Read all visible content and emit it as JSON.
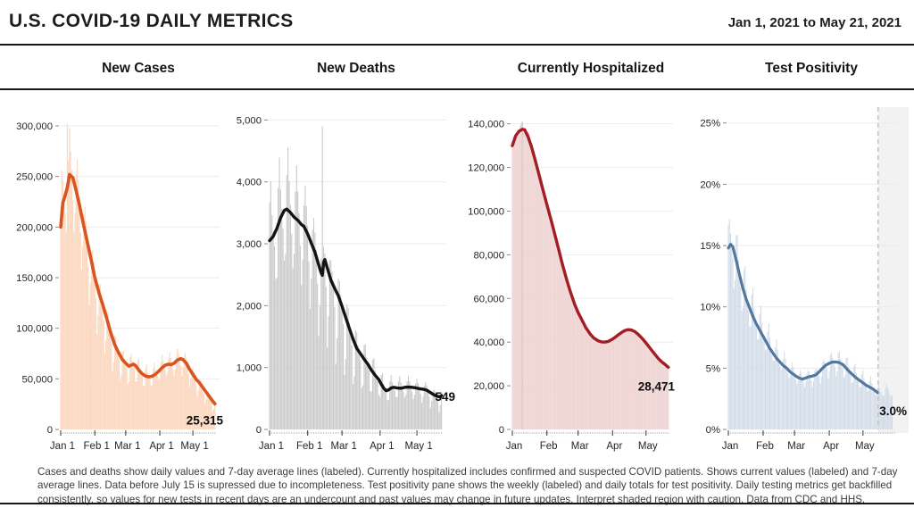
{
  "header": {
    "title": "U.S. COVID-19 DAILY METRICS",
    "date_range": "Jan 1, 2021 to May 21, 2021"
  },
  "footer": {
    "text": "Cases and deaths show daily values and 7-day average lines (labeled). Currently hospitalized includes confirmed and suspected COVID patients. Shows current values (labeled) and 7-day average lines. Data before July 15 is supressed due to incompleteness. Test positivity pane shows the weekly (labeled) and daily totals for test positivity. Daily testing metrics get backfilled consistently, so values for new tests in recent days are an undercount and past values may change in future updates. Interpret shaded region with caution. Data from CDC and HHS."
  },
  "theme": {
    "grid": "#ebebeb",
    "axis_text": "#262626",
    "tick": "#8a8a8a",
    "minor_dot": "#b3b3b3",
    "rule": "#161616",
    "shaded_region": "#f2f2f2",
    "dashed_line": "#c6c6c6",
    "value_label": "#0d0d0d"
  },
  "chart_data": [
    {
      "title": "New Cases",
      "type": "bar+line",
      "x_unit": "days since Jan 1, 2021",
      "x_range": [
        0,
        141
      ],
      "ylim": [
        0,
        315000
      ],
      "yticks": [
        0,
        50000,
        100000,
        150000,
        200000,
        250000,
        300000
      ],
      "ytick_labels": [
        "0",
        "50,000",
        "100,000",
        "150,000",
        "200,000",
        "250,000",
        "300,000"
      ],
      "xticks": [
        {
          "d": 0,
          "label": "Jan 1"
        },
        {
          "d": 31,
          "label": "Feb 1"
        },
        {
          "d": 59,
          "label": "Mar 1"
        },
        {
          "d": 90,
          "label": "Apr 1"
        },
        {
          "d": 120,
          "label": "May 1"
        }
      ],
      "current_value_label": "25,315",
      "current_value": 25315,
      "colors": {
        "line": "#d9541e",
        "bar": "#fbd9c2"
      },
      "avg_line": [
        [
          0,
          200000
        ],
        [
          2,
          224000
        ],
        [
          4,
          231000
        ],
        [
          6,
          239000
        ],
        [
          8,
          252000
        ],
        [
          11,
          249000
        ],
        [
          14,
          236000
        ],
        [
          17,
          222000
        ],
        [
          20,
          206000
        ],
        [
          24,
          186000
        ],
        [
          28,
          166000
        ],
        [
          31,
          150000
        ],
        [
          35,
          134000
        ],
        [
          38,
          124000
        ],
        [
          42,
          109000
        ],
        [
          45,
          97000
        ],
        [
          49,
          84000
        ],
        [
          52,
          77000
        ],
        [
          56,
          69000
        ],
        [
          59,
          65500
        ],
        [
          62,
          62500
        ],
        [
          64,
          63500
        ],
        [
          66,
          64500
        ],
        [
          68,
          63000
        ],
        [
          71,
          58500
        ],
        [
          74,
          55000
        ],
        [
          77,
          52800
        ],
        [
          80,
          52000
        ],
        [
          83,
          52600
        ],
        [
          86,
          54500
        ],
        [
          89,
          57500
        ],
        [
          92,
          61000
        ],
        [
          95,
          63500
        ],
        [
          98,
          64500
        ],
        [
          100,
          64000
        ],
        [
          103,
          65500
        ],
        [
          106,
          68500
        ],
        [
          109,
          70000
        ],
        [
          111,
          69000
        ],
        [
          114,
          65500
        ],
        [
          117,
          59500
        ],
        [
          120,
          54500
        ],
        [
          123,
          49500
        ],
        [
          126,
          46000
        ],
        [
          129,
          41500
        ],
        [
          132,
          37000
        ],
        [
          135,
          32500
        ],
        [
          138,
          28000
        ],
        [
          140,
          25315
        ]
      ],
      "daily_weekly_pattern": [
        0.1,
        0.16,
        0.07,
        0.02,
        -0.08,
        -0.26,
        -0.18
      ],
      "daily_spikes": [
        {
          "d": 6,
          "v": 302000
        }
      ]
    },
    {
      "title": "New Deaths",
      "type": "bar+line",
      "x_unit": "days since Jan 1, 2021",
      "x_range": [
        0,
        141
      ],
      "ylim": [
        0,
        5150
      ],
      "yticks": [
        0,
        1000,
        2000,
        3000,
        4000,
        5000
      ],
      "ytick_labels": [
        "0",
        "1,000",
        "2,000",
        "3,000",
        "4,000",
        "5,000"
      ],
      "xticks": [
        {
          "d": 0,
          "label": "Jan 1"
        },
        {
          "d": 31,
          "label": "Feb 1"
        },
        {
          "d": 59,
          "label": "Mar 1"
        },
        {
          "d": 90,
          "label": "Apr 1"
        },
        {
          "d": 120,
          "label": "May 1"
        }
      ],
      "current_value_label": "549",
      "current_value": 549,
      "colors": {
        "line": "#141414",
        "bar": "#c9c9c9"
      },
      "avg_line": [
        [
          0,
          3050
        ],
        [
          3,
          3120
        ],
        [
          6,
          3250
        ],
        [
          9,
          3420
        ],
        [
          12,
          3540
        ],
        [
          14,
          3560
        ],
        [
          17,
          3505
        ],
        [
          20,
          3430
        ],
        [
          23,
          3380
        ],
        [
          26,
          3310
        ],
        [
          28,
          3280
        ],
        [
          31,
          3160
        ],
        [
          34,
          3010
        ],
        [
          37,
          2860
        ],
        [
          40,
          2660
        ],
        [
          42,
          2530
        ],
        [
          43,
          2490
        ],
        [
          44,
          2700
        ],
        [
          45,
          2745
        ],
        [
          47,
          2610
        ],
        [
          50,
          2410
        ],
        [
          53,
          2280
        ],
        [
          56,
          2160
        ],
        [
          59,
          1990
        ],
        [
          62,
          1810
        ],
        [
          65,
          1630
        ],
        [
          68,
          1460
        ],
        [
          71,
          1310
        ],
        [
          74,
          1225
        ],
        [
          77,
          1135
        ],
        [
          80,
          1055
        ],
        [
          83,
          955
        ],
        [
          86,
          875
        ],
        [
          89,
          805
        ],
        [
          91,
          730
        ],
        [
          93,
          665
        ],
        [
          95,
          625
        ],
        [
          97,
          640
        ],
        [
          99,
          670
        ],
        [
          101,
          680
        ],
        [
          104,
          670
        ],
        [
          107,
          665
        ],
        [
          110,
          680
        ],
        [
          113,
          685
        ],
        [
          116,
          680
        ],
        [
          119,
          672
        ],
        [
          122,
          658
        ],
        [
          125,
          650
        ],
        [
          128,
          635
        ],
        [
          131,
          595
        ],
        [
          133,
          570
        ],
        [
          135,
          548
        ],
        [
          137,
          532
        ],
        [
          139,
          528
        ],
        [
          140,
          549
        ]
      ],
      "daily_weekly_pattern": [
        0.15,
        0.22,
        0.1,
        0.03,
        -0.1,
        -0.38,
        -0.28
      ],
      "daily_spikes": [
        {
          "d": 43,
          "v": 4900
        }
      ]
    },
    {
      "title": "Currently Hospitalized",
      "type": "area+line",
      "x_unit": "days since Jan 1, 2021",
      "x_range": [
        0,
        141
      ],
      "ylim": [
        0,
        146000
      ],
      "yticks": [
        0,
        20000,
        40000,
        60000,
        80000,
        100000,
        120000,
        140000
      ],
      "ytick_labels": [
        "0",
        "20,000",
        "40,000",
        "60,000",
        "80,000",
        "100,000",
        "120,000",
        "140,000"
      ],
      "xticks": [
        {
          "d": 0,
          "label": "Jan"
        },
        {
          "d": 31,
          "label": "Feb"
        },
        {
          "d": 59,
          "label": "Mar"
        },
        {
          "d": 90,
          "label": "Apr"
        },
        {
          "d": 120,
          "label": "May"
        }
      ],
      "current_value_label": "28,471",
      "current_value": 28471,
      "colors": {
        "line": "#a21d24",
        "bar": "#efd5d3",
        "spike_bar": "#cdc6c3"
      },
      "avg_line": [
        [
          0,
          130000
        ],
        [
          3,
          134500
        ],
        [
          6,
          136600
        ],
        [
          9,
          137500
        ],
        [
          11,
          137300
        ],
        [
          14,
          134200
        ],
        [
          17,
          129800
        ],
        [
          20,
          124300
        ],
        [
          24,
          116600
        ],
        [
          28,
          108700
        ],
        [
          31,
          103000
        ],
        [
          35,
          95500
        ],
        [
          38,
          89600
        ],
        [
          42,
          81600
        ],
        [
          45,
          75500
        ],
        [
          49,
          68200
        ],
        [
          52,
          63200
        ],
        [
          56,
          57200
        ],
        [
          59,
          53600
        ],
        [
          63,
          49600
        ],
        [
          66,
          46600
        ],
        [
          70,
          43600
        ],
        [
          73,
          41900
        ],
        [
          77,
          40600
        ],
        [
          80,
          40100
        ],
        [
          83,
          40000
        ],
        [
          86,
          40300
        ],
        [
          89,
          41100
        ],
        [
          92,
          42100
        ],
        [
          95,
          43300
        ],
        [
          98,
          44400
        ],
        [
          101,
          45300
        ],
        [
          104,
          45700
        ],
        [
          107,
          45500
        ],
        [
          110,
          44800
        ],
        [
          113,
          43500
        ],
        [
          116,
          42000
        ],
        [
          119,
          40200
        ],
        [
          122,
          38300
        ],
        [
          125,
          36300
        ],
        [
          128,
          34400
        ],
        [
          131,
          32500
        ],
        [
          134,
          31000
        ],
        [
          137,
          29800
        ],
        [
          140,
          28471
        ]
      ],
      "daily_weekly_pattern": [
        0.012,
        0.018,
        0.01,
        0.004,
        -0.003,
        -0.008,
        -0.012
      ],
      "daily_spikes": [
        {
          "d": 9,
          "v": 141000
        }
      ]
    },
    {
      "title": "Test Positivity",
      "type": "bar+line",
      "x_unit": "days since Jan 1, 2021",
      "x_range": [
        0,
        148
      ],
      "bars_end": 146,
      "line_end": 133,
      "ylim": [
        0,
        26
      ],
      "yticks": [
        0,
        5,
        10,
        15,
        20,
        25
      ],
      "ytick_labels": [
        "0%",
        "5%",
        "10%",
        "15%",
        "20%",
        "25%"
      ],
      "xticks": [
        {
          "d": 0,
          "label": "Jan"
        },
        {
          "d": 31,
          "label": "Feb"
        },
        {
          "d": 59,
          "label": "Mar"
        },
        {
          "d": 90,
          "label": "Apr"
        },
        {
          "d": 120,
          "label": "May"
        }
      ],
      "current_value_label": "3.0%",
      "current_value": 3.0,
      "colors": {
        "line": "#54779f",
        "bar": "#d0dbe8"
      },
      "dashed_line_day": 133.5,
      "shaded_from_day": 133.5,
      "avg_line": [
        [
          0,
          14.8
        ],
        [
          2,
          15.1
        ],
        [
          4,
          14.9
        ],
        [
          7,
          13.8
        ],
        [
          10,
          12.6
        ],
        [
          13,
          11.5
        ],
        [
          16,
          10.6
        ],
        [
          19,
          9.9
        ],
        [
          22,
          9.2
        ],
        [
          25,
          8.6
        ],
        [
          28,
          8.1
        ],
        [
          31,
          7.6
        ],
        [
          34,
          7.1
        ],
        [
          37,
          6.6
        ],
        [
          40,
          6.2
        ],
        [
          43,
          5.8
        ],
        [
          46,
          5.5
        ],
        [
          49,
          5.2
        ],
        [
          52,
          5.0
        ],
        [
          55,
          4.7
        ],
        [
          58,
          4.5
        ],
        [
          61,
          4.3
        ],
        [
          63,
          4.2
        ],
        [
          66,
          4.1
        ],
        [
          69,
          4.2
        ],
        [
          72,
          4.3
        ],
        [
          75,
          4.35
        ],
        [
          78,
          4.45
        ],
        [
          81,
          4.7
        ],
        [
          84,
          5.0
        ],
        [
          87,
          5.25
        ],
        [
          90,
          5.4
        ],
        [
          93,
          5.5
        ],
        [
          96,
          5.5
        ],
        [
          99,
          5.45
        ],
        [
          102,
          5.3
        ],
        [
          105,
          5.0
        ],
        [
          108,
          4.7
        ],
        [
          111,
          4.45
        ],
        [
          114,
          4.2
        ],
        [
          117,
          4.0
        ],
        [
          120,
          3.8
        ],
        [
          123,
          3.6
        ],
        [
          126,
          3.45
        ],
        [
          129,
          3.3
        ],
        [
          131,
          3.15
        ],
        [
          133,
          3.0
        ]
      ],
      "daily_weekly_pattern": [
        0.12,
        0.2,
        0.1,
        0.03,
        -0.06,
        -0.16,
        -0.1
      ],
      "daily_spikes": []
    }
  ]
}
